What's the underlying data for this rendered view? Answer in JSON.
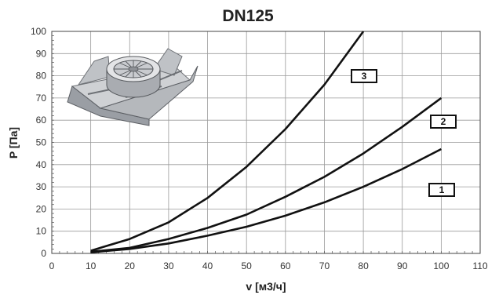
{
  "chart_data": {
    "type": "line",
    "title": "DN125",
    "xlabel": "v [м3/ч]",
    "ylabel": "P [Па]",
    "xlim": [
      0,
      110
    ],
    "ylim": [
      0,
      100
    ],
    "x_ticks": [
      0,
      10,
      20,
      30,
      40,
      50,
      60,
      70,
      80,
      90,
      100,
      110
    ],
    "y_ticks": [
      0,
      10,
      20,
      30,
      40,
      50,
      60,
      70,
      80,
      90,
      100
    ],
    "grid": true,
    "series": [
      {
        "name": "1",
        "x": [
          10,
          20,
          30,
          40,
          50,
          60,
          70,
          80,
          90,
          100
        ],
        "values": [
          0.5,
          2,
          4.5,
          8,
          12,
          17,
          23,
          30,
          38,
          47
        ]
      },
      {
        "name": "2",
        "x": [
          10,
          20,
          30,
          40,
          50,
          60,
          70,
          80,
          90,
          100
        ],
        "values": [
          0.7,
          2.5,
          6.5,
          11.5,
          17.5,
          25.5,
          34.5,
          45,
          57,
          70
        ]
      },
      {
        "name": "3",
        "x": [
          10,
          20,
          30,
          40,
          50,
          60,
          70,
          80
        ],
        "values": [
          1.2,
          6.5,
          14,
          25,
          39,
          56,
          76,
          100
        ]
      }
    ],
    "image": "ventilation-outlet-on-roof-plate"
  }
}
